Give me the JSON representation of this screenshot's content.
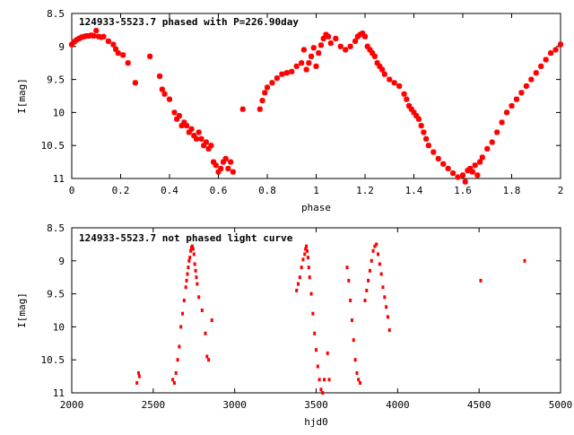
{
  "colors": {
    "points": "#ff0000",
    "axes": "#000000",
    "background": "#ffffff"
  },
  "chart_data": [
    {
      "type": "scatter",
      "title": "124933-5523.7 phased with P=226.90day",
      "xlabel": "phase",
      "ylabel": "I[mag]",
      "xlim": [
        0,
        2
      ],
      "ylim": [
        11,
        8.5
      ],
      "y_inverted": true,
      "grid": false,
      "marker": "cross",
      "x_ticks": [
        "0",
        "0.2",
        "0.4",
        "0.6",
        "0.8",
        "1",
        "1.2",
        "1.4",
        "1.6",
        "1.8",
        "2"
      ],
      "y_ticks": [
        "8.5",
        "9",
        "9.5",
        "10",
        "10.5",
        "11"
      ],
      "x": [
        0.0,
        0.01,
        0.02,
        0.03,
        0.04,
        0.05,
        0.06,
        0.07,
        0.08,
        0.09,
        0.1,
        0.11,
        0.12,
        0.13,
        0.15,
        0.17,
        0.18,
        0.19,
        0.21,
        0.23,
        0.26,
        0.32,
        0.36,
        0.37,
        0.38,
        0.4,
        0.42,
        0.43,
        0.44,
        0.45,
        0.46,
        0.47,
        0.48,
        0.49,
        0.5,
        0.51,
        0.52,
        0.53,
        0.54,
        0.55,
        0.56,
        0.57,
        0.58,
        0.59,
        0.6,
        0.61,
        0.62,
        0.63,
        0.64,
        0.65,
        0.66,
        0.7,
        0.77,
        0.78,
        0.79,
        0.8,
        0.82,
        0.84,
        0.86,
        0.88,
        0.9,
        0.92,
        0.94,
        0.95,
        0.96,
        0.97,
        0.98,
        0.99,
        1.0,
        1.01,
        1.02,
        1.03,
        1.04,
        1.05,
        1.06,
        1.08,
        1.1,
        1.12,
        1.14,
        1.16,
        1.17,
        1.18,
        1.19,
        1.2,
        1.21,
        1.22,
        1.23,
        1.24,
        1.25,
        1.26,
        1.27,
        1.28,
        1.3,
        1.32,
        1.34,
        1.36,
        1.37,
        1.38,
        1.39,
        1.4,
        1.41,
        1.42,
        1.43,
        1.44,
        1.45,
        1.46,
        1.48,
        1.5,
        1.52,
        1.54,
        1.56,
        1.58,
        1.6,
        1.61,
        1.62,
        1.63,
        1.64,
        1.65,
        1.66,
        1.67,
        1.68,
        1.7,
        1.72,
        1.74,
        1.76,
        1.78,
        1.8,
        1.82,
        1.84,
        1.86,
        1.88,
        1.9,
        1.92,
        1.94,
        1.96,
        1.98,
        2.0
      ],
      "y": [
        8.97,
        8.93,
        8.9,
        8.88,
        8.86,
        8.85,
        8.84,
        8.84,
        8.83,
        8.84,
        8.76,
        8.85,
        8.86,
        8.85,
        8.92,
        8.97,
        9.04,
        9.1,
        9.13,
        9.25,
        9.55,
        9.15,
        9.45,
        9.65,
        9.72,
        9.8,
        10.0,
        10.1,
        10.05,
        10.2,
        10.15,
        10.2,
        10.3,
        10.25,
        10.35,
        10.4,
        10.3,
        10.4,
        10.5,
        10.45,
        10.55,
        10.5,
        10.75,
        10.8,
        10.9,
        10.85,
        10.75,
        10.7,
        10.85,
        10.75,
        10.9,
        9.95,
        9.95,
        9.82,
        9.7,
        9.62,
        9.55,
        9.48,
        9.42,
        9.4,
        9.38,
        9.3,
        9.25,
        9.05,
        9.35,
        9.25,
        9.15,
        9.02,
        9.3,
        9.1,
        8.98,
        8.88,
        8.82,
        8.85,
        8.95,
        8.88,
        9.0,
        9.05,
        9.0,
        8.92,
        8.85,
        8.82,
        8.8,
        8.85,
        9.0,
        9.05,
        9.1,
        9.15,
        9.25,
        9.3,
        9.35,
        9.42,
        9.5,
        9.55,
        9.6,
        9.72,
        9.8,
        9.9,
        9.95,
        10.0,
        10.05,
        10.1,
        10.2,
        10.3,
        10.4,
        10.5,
        10.6,
        10.7,
        10.78,
        10.85,
        10.92,
        10.98,
        10.95,
        11.05,
        10.88,
        10.85,
        10.9,
        10.8,
        10.95,
        10.75,
        10.68,
        10.55,
        10.45,
        10.3,
        10.15,
        10.0,
        9.9,
        9.8,
        9.7,
        9.6,
        9.5,
        9.4,
        9.3,
        9.2,
        9.1,
        9.05,
        8.97
      ]
    },
    {
      "type": "scatter",
      "title": "124933-5523.7 not phased light curve",
      "xlabel": "hjd0",
      "ylabel": "I[mag]",
      "xlim": [
        2000,
        5000
      ],
      "ylim": [
        11,
        8.5
      ],
      "y_inverted": true,
      "grid": false,
      "marker": "dot",
      "x_ticks": [
        "2000",
        "2500",
        "3000",
        "3500",
        "4000",
        "4500",
        "5000"
      ],
      "y_ticks": [
        "8.5",
        "9",
        "9.5",
        "10",
        "10.5",
        "11"
      ],
      "x": [
        2400,
        2410,
        2415,
        2620,
        2630,
        2640,
        2650,
        2660,
        2670,
        2680,
        2690,
        2700,
        2705,
        2710,
        2715,
        2720,
        2725,
        2730,
        2735,
        2740,
        2745,
        2750,
        2755,
        2760,
        2765,
        2770,
        2780,
        2800,
        2820,
        2830,
        2840,
        2860,
        3380,
        3390,
        3400,
        3410,
        3420,
        3430,
        3435,
        3440,
        3445,
        3450,
        3455,
        3460,
        3470,
        3480,
        3490,
        3500,
        3510,
        3520,
        3530,
        3540,
        3550,
        3570,
        3580,
        3690,
        3700,
        3710,
        3720,
        3730,
        3740,
        3750,
        3760,
        3770,
        3800,
        3810,
        3820,
        3830,
        3840,
        3850,
        3860,
        3870,
        3880,
        3890,
        3900,
        3910,
        3920,
        3930,
        3940,
        3950,
        4510,
        4780
      ],
      "y": [
        10.85,
        10.7,
        10.75,
        10.8,
        10.85,
        10.7,
        10.5,
        10.3,
        10.0,
        9.8,
        9.6,
        9.4,
        9.3,
        9.2,
        9.1,
        9.0,
        8.95,
        8.85,
        8.8,
        8.78,
        8.82,
        8.9,
        9.05,
        9.15,
        9.25,
        9.35,
        9.55,
        9.75,
        10.1,
        10.45,
        10.5,
        9.9,
        9.45,
        9.35,
        9.25,
        9.1,
        8.98,
        8.9,
        8.82,
        8.78,
        8.85,
        8.95,
        9.1,
        9.25,
        9.5,
        9.8,
        10.1,
        10.35,
        10.6,
        10.8,
        10.95,
        11.0,
        10.8,
        10.4,
        10.8,
        9.1,
        9.3,
        9.6,
        9.9,
        10.2,
        10.5,
        10.7,
        10.8,
        10.85,
        9.6,
        9.45,
        9.3,
        9.15,
        9.0,
        8.85,
        8.78,
        8.75,
        8.9,
        9.05,
        9.2,
        9.4,
        9.55,
        9.7,
        9.85,
        10.05,
        9.3,
        9.0
      ]
    }
  ]
}
